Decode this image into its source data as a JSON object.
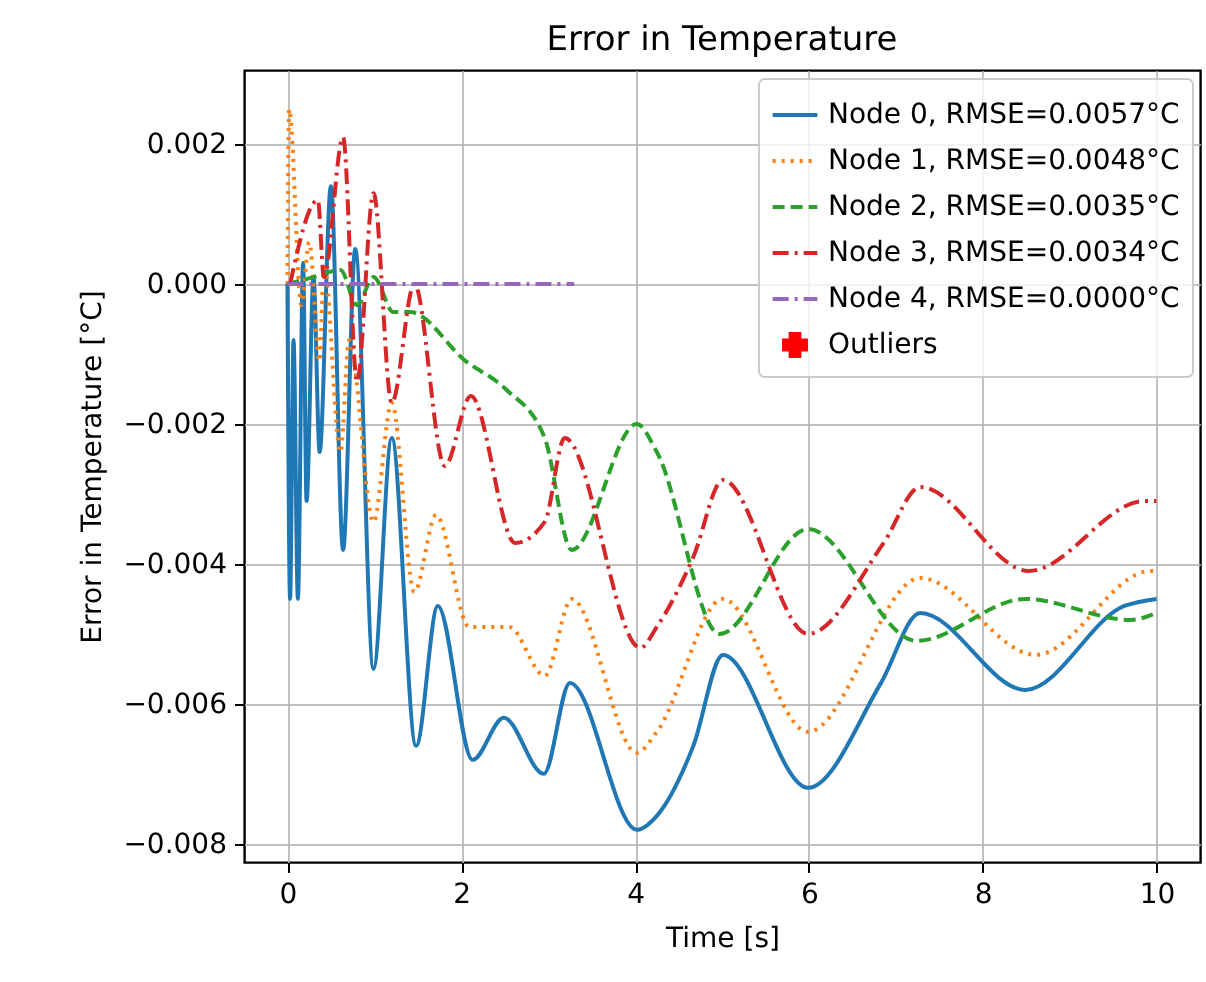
{
  "chart_data": {
    "type": "line",
    "title": "Error in Temperature",
    "xlabel": "Time [s]",
    "ylabel": "Error in Temperature [°C]",
    "xlim": [
      -0.5,
      10.5
    ],
    "ylim": [
      -0.00826,
      0.00306
    ],
    "xticks": [
      0,
      2,
      4,
      6,
      8,
      10
    ],
    "yticks": [
      {
        "value": 0.002,
        "label": "0.002"
      },
      {
        "value": 0,
        "label": "0.000"
      },
      {
        "value": -0.002,
        "label": "−0.002"
      },
      {
        "value": -0.004,
        "label": "−0.004"
      },
      {
        "value": -0.006,
        "label": "−0.006"
      },
      {
        "value": -0.008,
        "label": "−0.008"
      }
    ],
    "grid": true,
    "legend": "top right",
    "series": [
      {
        "name": "Node 0, RMSE=0.0057°C",
        "color": "#1f77b4",
        "line_style": "solid",
        "x": [
          0,
          0.03,
          0.07,
          0.12,
          0.18,
          0.22,
          0.3,
          0.37,
          0.5,
          0.64,
          0.78,
          0.99,
          1.2,
          1.48,
          1.73,
          2.13,
          2.49,
          2.95,
          3.25,
          4.02,
          4.25,
          4.67,
          5.01,
          5.99,
          6.83,
          7.28,
          8.49,
          9.63,
          10
        ],
        "values": [
          0,
          -0.0045,
          -0.0008,
          -0.0045,
          0.0003,
          -0.0031,
          0.0001,
          -0.0024,
          0.0014,
          -0.0038,
          0.0005,
          -0.0055,
          -0.0022,
          -0.0066,
          -0.0046,
          -0.0068,
          -0.0062,
          -0.007,
          -0.0057,
          -0.0078,
          -0.0076,
          -0.0066,
          -0.0053,
          -0.0072,
          -0.0057,
          -0.0047,
          -0.0058,
          -0.0046,
          -0.0045
        ]
      },
      {
        "name": "Node 1, RMSE=0.0048°C",
        "color": "#ff7f0e",
        "line_style": "dotted",
        "x": [
          0,
          0.02,
          0.16,
          0.25,
          0.37,
          0.42,
          0.61,
          0.71,
          0.99,
          1.2,
          1.46,
          1.71,
          2.09,
          2.55,
          2.96,
          3.27,
          4.02,
          4.25,
          5.01,
          5.99,
          7.28,
          8.61,
          9.93,
          10
        ],
        "values": [
          0,
          0.0025,
          -0.0003,
          0.0006,
          -0.0011,
          0.0003,
          -0.0024,
          -0.0008,
          -0.0034,
          -0.0017,
          -0.0044,
          -0.0033,
          -0.0049,
          -0.0049,
          -0.0056,
          -0.0045,
          -0.0067,
          -0.0064,
          -0.0045,
          -0.0064,
          -0.0042,
          -0.0053,
          -0.0041,
          -0.0041
        ]
      },
      {
        "name": "Node 2, RMSE=0.0035°C",
        "color": "#2ca02c",
        "line_style": "dashed",
        "x": [
          0,
          0.3,
          0.61,
          0.8,
          0.99,
          1.22,
          1.41,
          2.05,
          2.51,
          2.96,
          3.27,
          4.02,
          4.25,
          4.97,
          5.99,
          7.24,
          8.49,
          9.7,
          10
        ],
        "values": [
          0,
          0.0001,
          0.0002,
          -0.0003,
          0.0001,
          -0.0004,
          -0.0004,
          -0.0011,
          -0.0015,
          -0.0022,
          -0.0038,
          -0.002,
          -0.0024,
          -0.005,
          -0.0035,
          -0.0051,
          -0.0045,
          -0.0048,
          -0.0047
        ]
      },
      {
        "name": "Node 3, RMSE=0.0034°C",
        "color": "#d62728",
        "line_style": "dashdot",
        "x": [
          0.03,
          0.35,
          0.42,
          0.64,
          0.8,
          0.99,
          1.2,
          1.46,
          1.81,
          2.11,
          2.62,
          2.96,
          3.19,
          4.06,
          4.25,
          4.67,
          5.01,
          5.99,
          6.86,
          7.28,
          8.53,
          9.86,
          10
        ],
        "values": [
          0,
          0.0012,
          0.0001,
          0.0021,
          -0.0014,
          0.0013,
          -0.0017,
          0,
          -0.0026,
          -0.0016,
          -0.0037,
          -0.0034,
          -0.0022,
          -0.0052,
          -0.0049,
          -0.0039,
          -0.0028,
          -0.005,
          -0.0037,
          -0.0029,
          -0.0041,
          -0.0031,
          -0.0031
        ]
      },
      {
        "name": "Node 4, RMSE=0.0000°C",
        "color": "#9467bd",
        "line_style": "dashdot",
        "x": [
          0,
          3.3
        ],
        "values": [
          0,
          0
        ]
      },
      {
        "name": "Outliers",
        "type": "scatter",
        "color": "#ff0000",
        "marker": "cross"
      }
    ]
  }
}
